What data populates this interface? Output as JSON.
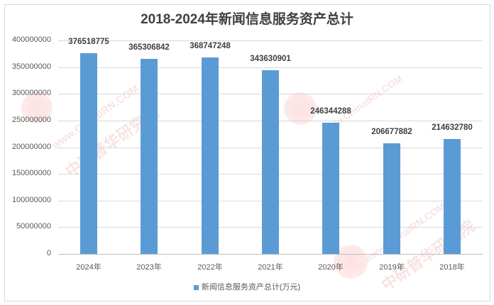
{
  "chart_data": {
    "type": "bar",
    "title": "2018-2024年新闻信息服务资产总计",
    "categories": [
      "2024年",
      "2023年",
      "2022年",
      "2021年",
      "2020年",
      "2019年",
      "2018年"
    ],
    "series": [
      {
        "name": "新闻信息服务资产总计(万元)",
        "values": [
          376518775,
          365306842,
          368747248,
          343630901,
          246344288,
          206677882,
          214632780
        ],
        "color": "#5b9bd5"
      }
    ],
    "xlabel": "",
    "ylabel": "",
    "ylim": [
      0,
      400000000
    ],
    "yticks": [
      "0",
      "50000000",
      "100000000",
      "150000000",
      "200000000",
      "250000000",
      "300000000",
      "350000000",
      "400000000"
    ],
    "grid": true,
    "legend_position": "bottom",
    "data_labels": [
      "376518775",
      "365306842",
      "368747248",
      "343630901",
      "246344288",
      "206677882",
      "214632780"
    ]
  },
  "watermark": {
    "url_text": "www.ChinaIRN.COM",
    "cn_text": "中研普华研究院",
    "logo_text": "CIRN"
  }
}
